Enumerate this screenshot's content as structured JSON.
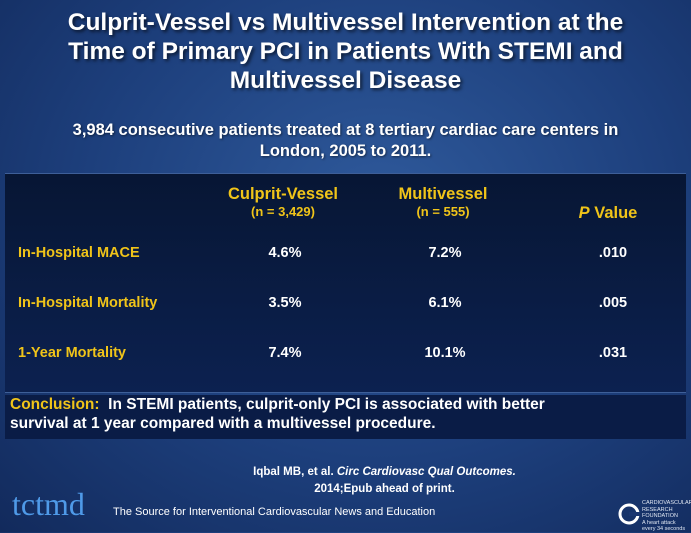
{
  "title": {
    "line1": "Culprit-Vessel vs Multivessel Intervention at the",
    "line2": "Time of Primary PCI in Patients With STEMI and",
    "line3": "Multivessel Disease"
  },
  "subtitle": {
    "line1": "3,984 consecutive patients treated at 8 tertiary cardiac care centers in",
    "line2": "London, 2005 to 2011."
  },
  "table": {
    "headers": {
      "culprit": "Culprit-Vessel",
      "culprit_n": "(n = 3,429)",
      "multi": "Multivessel",
      "multi_n": "(n = 555)",
      "p_italic": "P",
      "p_rest": " Value"
    },
    "rows": [
      {
        "label": "In-Hospital MACE",
        "culprit": "4.6%",
        "multi": "7.2%",
        "p": ".010"
      },
      {
        "label": "In-Hospital Mortality",
        "culprit": "3.5%",
        "multi": "6.1%",
        "p": ".005"
      },
      {
        "label": "1-Year Mortality",
        "culprit": "7.4%",
        "multi": "10.1%",
        "p": ".031"
      }
    ]
  },
  "conclusion": {
    "label": "Conclusion:",
    "line1": "  In STEMI patients, culprit-only PCI is associated with better",
    "line2": "survival at 1 year compared with a multivessel procedure."
  },
  "citation": {
    "author": "Iqbal MB, et al. ",
    "journal": "Circ Cardiovasc Qual Outcomes.",
    "line2": "2014;Epub ahead of print."
  },
  "footer": {
    "logo": "tctmd",
    "tagline": "The Source for Interventional Cardiovascular News and Education",
    "crf_line1": "CARDIOVASCULAR",
    "crf_line2": "RESEARCH",
    "crf_line3": "FOUNDATION",
    "crf_line4": "A heart attack every 34 seconds"
  }
}
